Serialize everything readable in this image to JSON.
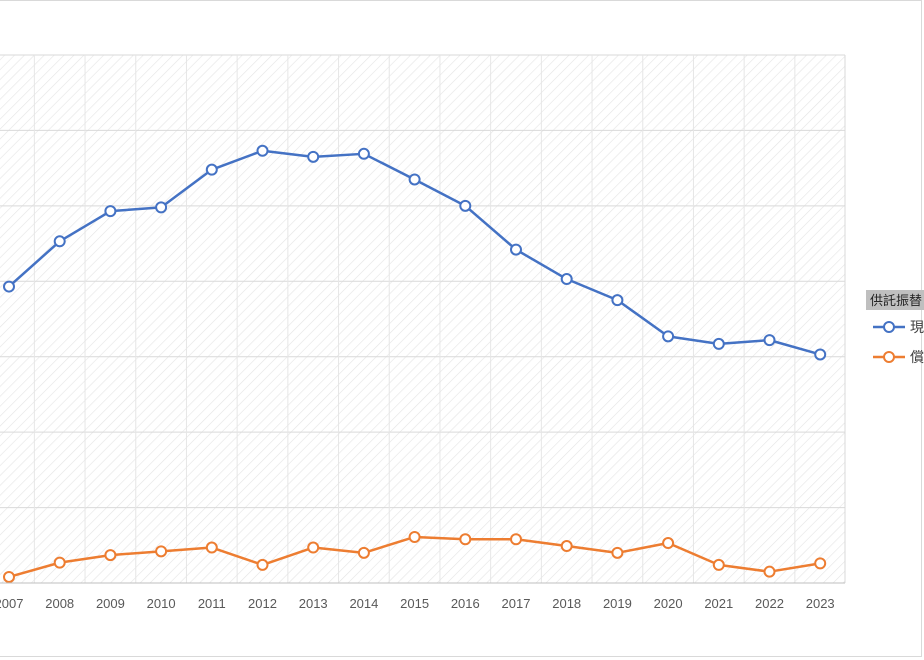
{
  "chart_data": {
    "type": "line",
    "x": [
      "2007",
      "2008",
      "2009",
      "2010",
      "2011",
      "2012",
      "2013",
      "2014",
      "2015",
      "2016",
      "2017",
      "2018",
      "2019",
      "2020",
      "2021",
      "2022",
      "2023"
    ],
    "ylim": [
      0,
      7
    ],
    "grid": true,
    "legend_position": "right",
    "legend_title": "供託振替",
    "series": [
      {
        "name": "現",
        "color": "#4472c4",
        "values": [
          3.93,
          4.53,
          4.93,
          4.98,
          5.48,
          5.73,
          5.65,
          5.69,
          5.35,
          5.0,
          4.42,
          4.03,
          3.75,
          3.27,
          3.17,
          3.22,
          3.03
        ]
      },
      {
        "name": "償",
        "color": "#ed7d31",
        "values": [
          0.08,
          0.27,
          0.37,
          0.42,
          0.47,
          0.24,
          0.47,
          0.4,
          0.61,
          0.58,
          0.58,
          0.49,
          0.4,
          0.53,
          0.24,
          0.15,
          0.26
        ]
      }
    ]
  }
}
